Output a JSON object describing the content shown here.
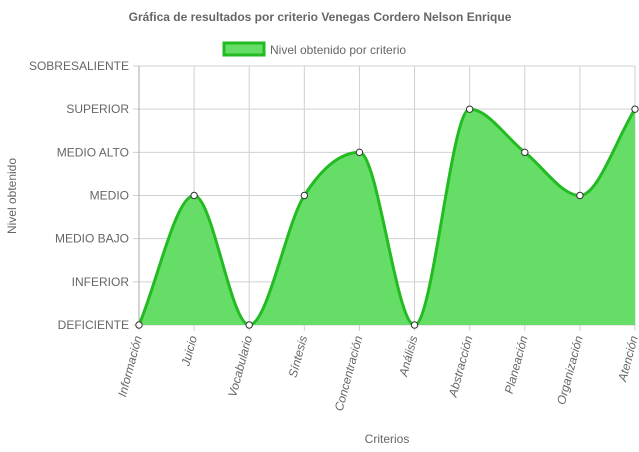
{
  "chart_data": {
    "type": "area",
    "title": "Gráfica de resultados por criterio Venegas Cordero Nelson Enrique",
    "xlabel": "Criterios",
    "ylabel": "Nivel obtenido",
    "levels": [
      "DEFICIENTE",
      "INFERIOR",
      "MEDIO BAJO",
      "MEDIO",
      "MEDIO ALTO",
      "SUPERIOR",
      "SOBRESALIENTE"
    ],
    "categories": [
      "Información",
      "Juicio",
      "Vocabulario",
      "Síntesis",
      "Concentración",
      "Análisis",
      "Abstracción",
      "Planeación",
      "Organización",
      "Atención"
    ],
    "series": [
      {
        "name": "Nivel obtenido por criterio",
        "values": [
          "DEFICIENTE",
          "MEDIO",
          "DEFICIENTE",
          "MEDIO",
          "MEDIO ALTO",
          "DEFICIENTE",
          "SUPERIOR",
          "MEDIO ALTO",
          "MEDIO",
          "SUPERIOR"
        ],
        "fill": "#66dd66",
        "stroke": "#22bb22"
      }
    ],
    "grid": true,
    "legend": "top"
  }
}
